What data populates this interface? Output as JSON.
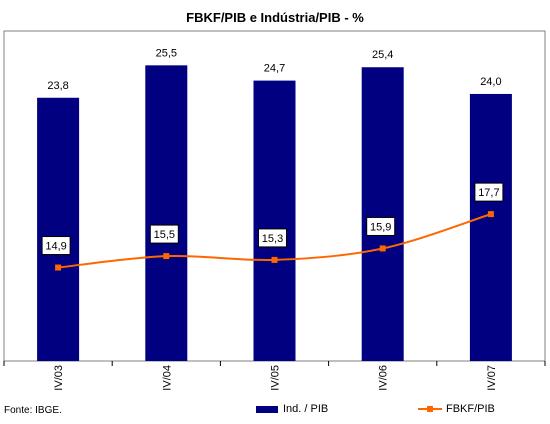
{
  "chart_data": {
    "type": "bar",
    "title": "FBKF/PIB e Indústria/PIB - %",
    "categories": [
      "IV/03",
      "IV/04",
      "IV/05",
      "IV/06",
      "IV/07"
    ],
    "series": [
      {
        "name": "Ind. / PIB",
        "type": "bar",
        "values": [
          23.8,
          25.5,
          24.7,
          25.4,
          24.0
        ],
        "labels": [
          "23,8",
          "25,5",
          "24,7",
          "25,4",
          "24,0"
        ],
        "color": "#000080"
      },
      {
        "name": "FBKF/PIB",
        "type": "line",
        "values": [
          14.9,
          15.5,
          15.3,
          15.9,
          17.7
        ],
        "labels": [
          "14,9",
          "15,5",
          "15,3",
          "15,9",
          "17,7"
        ],
        "color": "#FF6600"
      }
    ],
    "ylim": [
      10,
      27.3
    ],
    "grid": false,
    "legend": "bottom",
    "source": "Fonte: IBGE."
  }
}
